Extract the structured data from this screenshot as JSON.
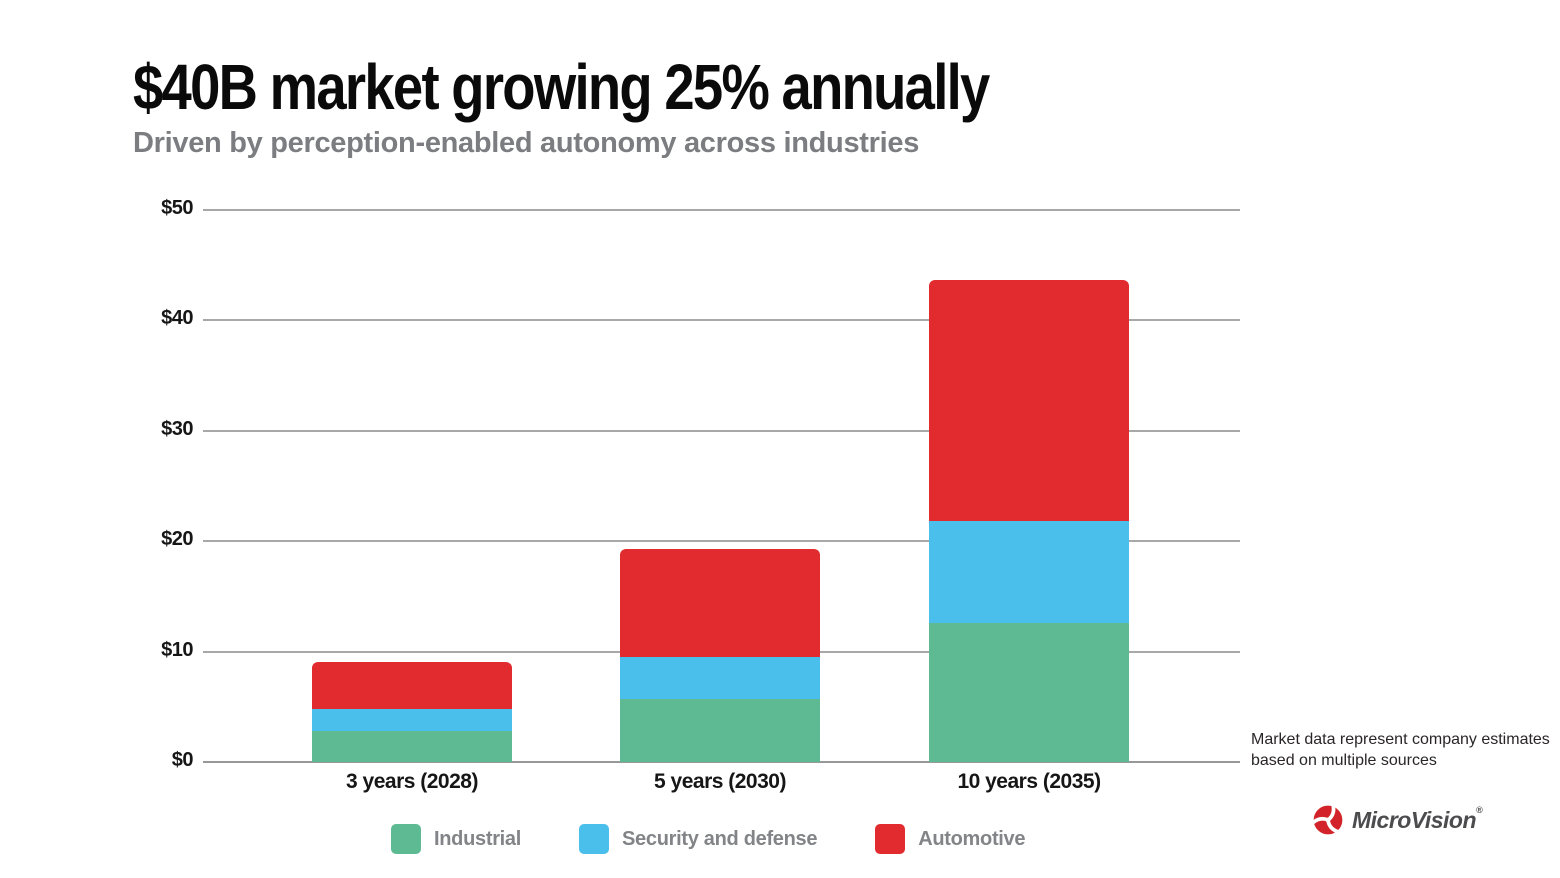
{
  "slide": {
    "title": "$40B market growing 25% annually",
    "subtitle": "Driven by perception-enabled autonomy across industries",
    "footnote_lines": [
      "Market data represent company estimates",
      "based on multiple sources"
    ]
  },
  "logo": {
    "brand": "MicroVision",
    "registered_mark": "®",
    "icon": "microvision-swirl-icon",
    "icon_color": "#d2232a",
    "text_color": "#4c4c4e"
  },
  "chart_data": {
    "type": "bar",
    "stacked": true,
    "title": "$40B market growing 25% annually",
    "xlabel": "",
    "ylabel": "",
    "categories": [
      "3 years (2028)",
      "5 years (2030)",
      "10 years (2035)"
    ],
    "series": [
      {
        "name": "Industrial",
        "color": "#5eba92",
        "values": [
          2.8,
          5.7,
          12.6
        ]
      },
      {
        "name": "Security and defense",
        "color": "#4bbfec",
        "values": [
          2.0,
          3.8,
          9.2
        ]
      },
      {
        "name": "Automotive",
        "color": "#e12b2e",
        "values": [
          4.3,
          9.8,
          21.9
        ]
      }
    ],
    "yticks": [
      {
        "value": 0,
        "label": "$0"
      },
      {
        "value": 10,
        "label": "$10"
      },
      {
        "value": 20,
        "label": "$20"
      },
      {
        "value": 30,
        "label": "$30"
      },
      {
        "value": 40,
        "label": "$40"
      },
      {
        "value": 50,
        "label": "$50"
      }
    ],
    "ylim": [
      0,
      50
    ],
    "grid": "horizontal",
    "legend_position": "bottom"
  }
}
